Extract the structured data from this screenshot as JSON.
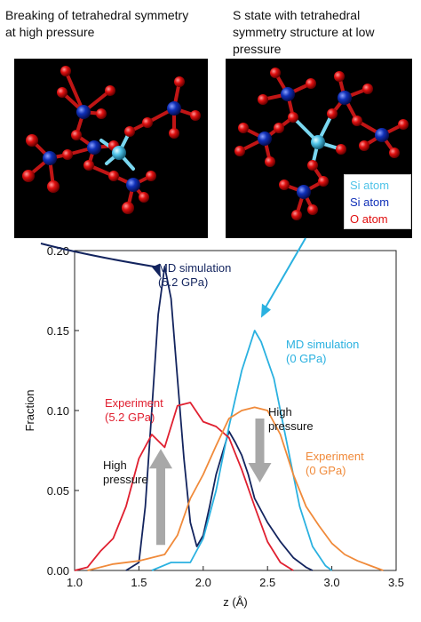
{
  "captions": {
    "left": [
      "Breaking of tetrahedral symmetry",
      "at high pressure"
    ],
    "right": [
      "S state with tetrahedral",
      "symmetry structure at low",
      "pressure"
    ]
  },
  "atom_legend": [
    {
      "label": "Si atom",
      "color": "#4fc3e8"
    },
    {
      "label": "Si atom",
      "color": "#1030b8"
    },
    {
      "label": "O atom",
      "color": "#e01010"
    }
  ],
  "colors": {
    "md_high": "#13245e",
    "md_low": "#2ab1e0",
    "exp_high": "#e02030",
    "exp_low": "#f08a3a",
    "arrow": "#a8a8a8",
    "panel_bg": "#000000"
  },
  "chart_data": {
    "type": "line",
    "xlabel": "z (Å)",
    "ylabel": "Fraction",
    "xlim": [
      1.0,
      3.5
    ],
    "ylim": [
      0,
      0.2
    ],
    "xticks": [
      "1.0",
      "1.5",
      "2.0",
      "2.5",
      "3.0",
      "3.5"
    ],
    "yticks": [
      "0.00",
      "0.05",
      "0.10",
      "0.15",
      "0.20"
    ],
    "series": [
      {
        "key": "md_high",
        "name": "MD simulation (5.2 GPa)",
        "points": [
          [
            1.4,
            0.0
          ],
          [
            1.5,
            0.005
          ],
          [
            1.55,
            0.04
          ],
          [
            1.6,
            0.1
          ],
          [
            1.65,
            0.16
          ],
          [
            1.7,
            0.19
          ],
          [
            1.75,
            0.17
          ],
          [
            1.8,
            0.12
          ],
          [
            1.85,
            0.07
          ],
          [
            1.9,
            0.03
          ],
          [
            1.95,
            0.015
          ],
          [
            2.0,
            0.022
          ],
          [
            2.05,
            0.04
          ],
          [
            2.1,
            0.06
          ],
          [
            2.2,
            0.087
          ],
          [
            2.25,
            0.08
          ],
          [
            2.3,
            0.072
          ],
          [
            2.35,
            0.06
          ],
          [
            2.4,
            0.045
          ],
          [
            2.5,
            0.03
          ],
          [
            2.6,
            0.018
          ],
          [
            2.7,
            0.008
          ],
          [
            2.8,
            0.002
          ],
          [
            2.85,
            0.0
          ]
        ]
      },
      {
        "key": "md_low",
        "name": "MD simulation (0 GPa)",
        "points": [
          [
            1.6,
            0.0
          ],
          [
            1.75,
            0.005
          ],
          [
            1.9,
            0.005
          ],
          [
            2.0,
            0.02
          ],
          [
            2.1,
            0.05
          ],
          [
            2.2,
            0.09
          ],
          [
            2.3,
            0.125
          ],
          [
            2.4,
            0.15
          ],
          [
            2.45,
            0.143
          ],
          [
            2.55,
            0.12
          ],
          [
            2.65,
            0.08
          ],
          [
            2.75,
            0.04
          ],
          [
            2.85,
            0.015
          ],
          [
            2.95,
            0.003
          ],
          [
            3.0,
            0.0
          ]
        ]
      },
      {
        "key": "exp_high",
        "name": "Experiment (5.2 GPa)",
        "points": [
          [
            1.0,
            0.0
          ],
          [
            1.1,
            0.002
          ],
          [
            1.2,
            0.012
          ],
          [
            1.3,
            0.02
          ],
          [
            1.4,
            0.04
          ],
          [
            1.5,
            0.07
          ],
          [
            1.6,
            0.085
          ],
          [
            1.7,
            0.077
          ],
          [
            1.8,
            0.103
          ],
          [
            1.9,
            0.105
          ],
          [
            2.0,
            0.093
          ],
          [
            2.1,
            0.09
          ],
          [
            2.2,
            0.083
          ],
          [
            2.3,
            0.063
          ],
          [
            2.4,
            0.04
          ],
          [
            2.5,
            0.018
          ],
          [
            2.6,
            0.005
          ],
          [
            2.7,
            0.0
          ]
        ]
      },
      {
        "key": "exp_low",
        "name": "Experiment (0 GPa)",
        "points": [
          [
            1.1,
            0.0
          ],
          [
            1.3,
            0.004
          ],
          [
            1.5,
            0.006
          ],
          [
            1.6,
            0.008
          ],
          [
            1.7,
            0.01
          ],
          [
            1.8,
            0.022
          ],
          [
            1.9,
            0.045
          ],
          [
            2.0,
            0.06
          ],
          [
            2.1,
            0.078
          ],
          [
            2.2,
            0.095
          ],
          [
            2.3,
            0.1
          ],
          [
            2.4,
            0.102
          ],
          [
            2.5,
            0.1
          ],
          [
            2.6,
            0.085
          ],
          [
            2.7,
            0.06
          ],
          [
            2.8,
            0.04
          ],
          [
            2.9,
            0.028
          ],
          [
            3.0,
            0.017
          ],
          [
            3.1,
            0.01
          ],
          [
            3.2,
            0.006
          ],
          [
            3.3,
            0.003
          ],
          [
            3.4,
            0.0
          ]
        ]
      }
    ],
    "annotations": [
      {
        "key": "md_high",
        "lines": [
          "MD simulation",
          "(5.2 GPa)"
        ],
        "color": "#13245e"
      },
      {
        "key": "md_low",
        "lines": [
          "MD simulation",
          "(0 GPa)"
        ],
        "color": "#2ab1e0"
      },
      {
        "key": "exp_high",
        "lines": [
          "Experiment",
          "(5.2 GPa)"
        ],
        "color": "#e02030"
      },
      {
        "key": "exp_low",
        "lines": [
          "Experiment",
          "(0 GPa)"
        ],
        "color": "#f08a3a"
      },
      {
        "key": "hp_left",
        "lines": [
          "High",
          "pressure"
        ],
        "color": "#111111"
      },
      {
        "key": "hp_right",
        "lines": [
          "High",
          "pressure"
        ],
        "color": "#111111"
      }
    ]
  }
}
